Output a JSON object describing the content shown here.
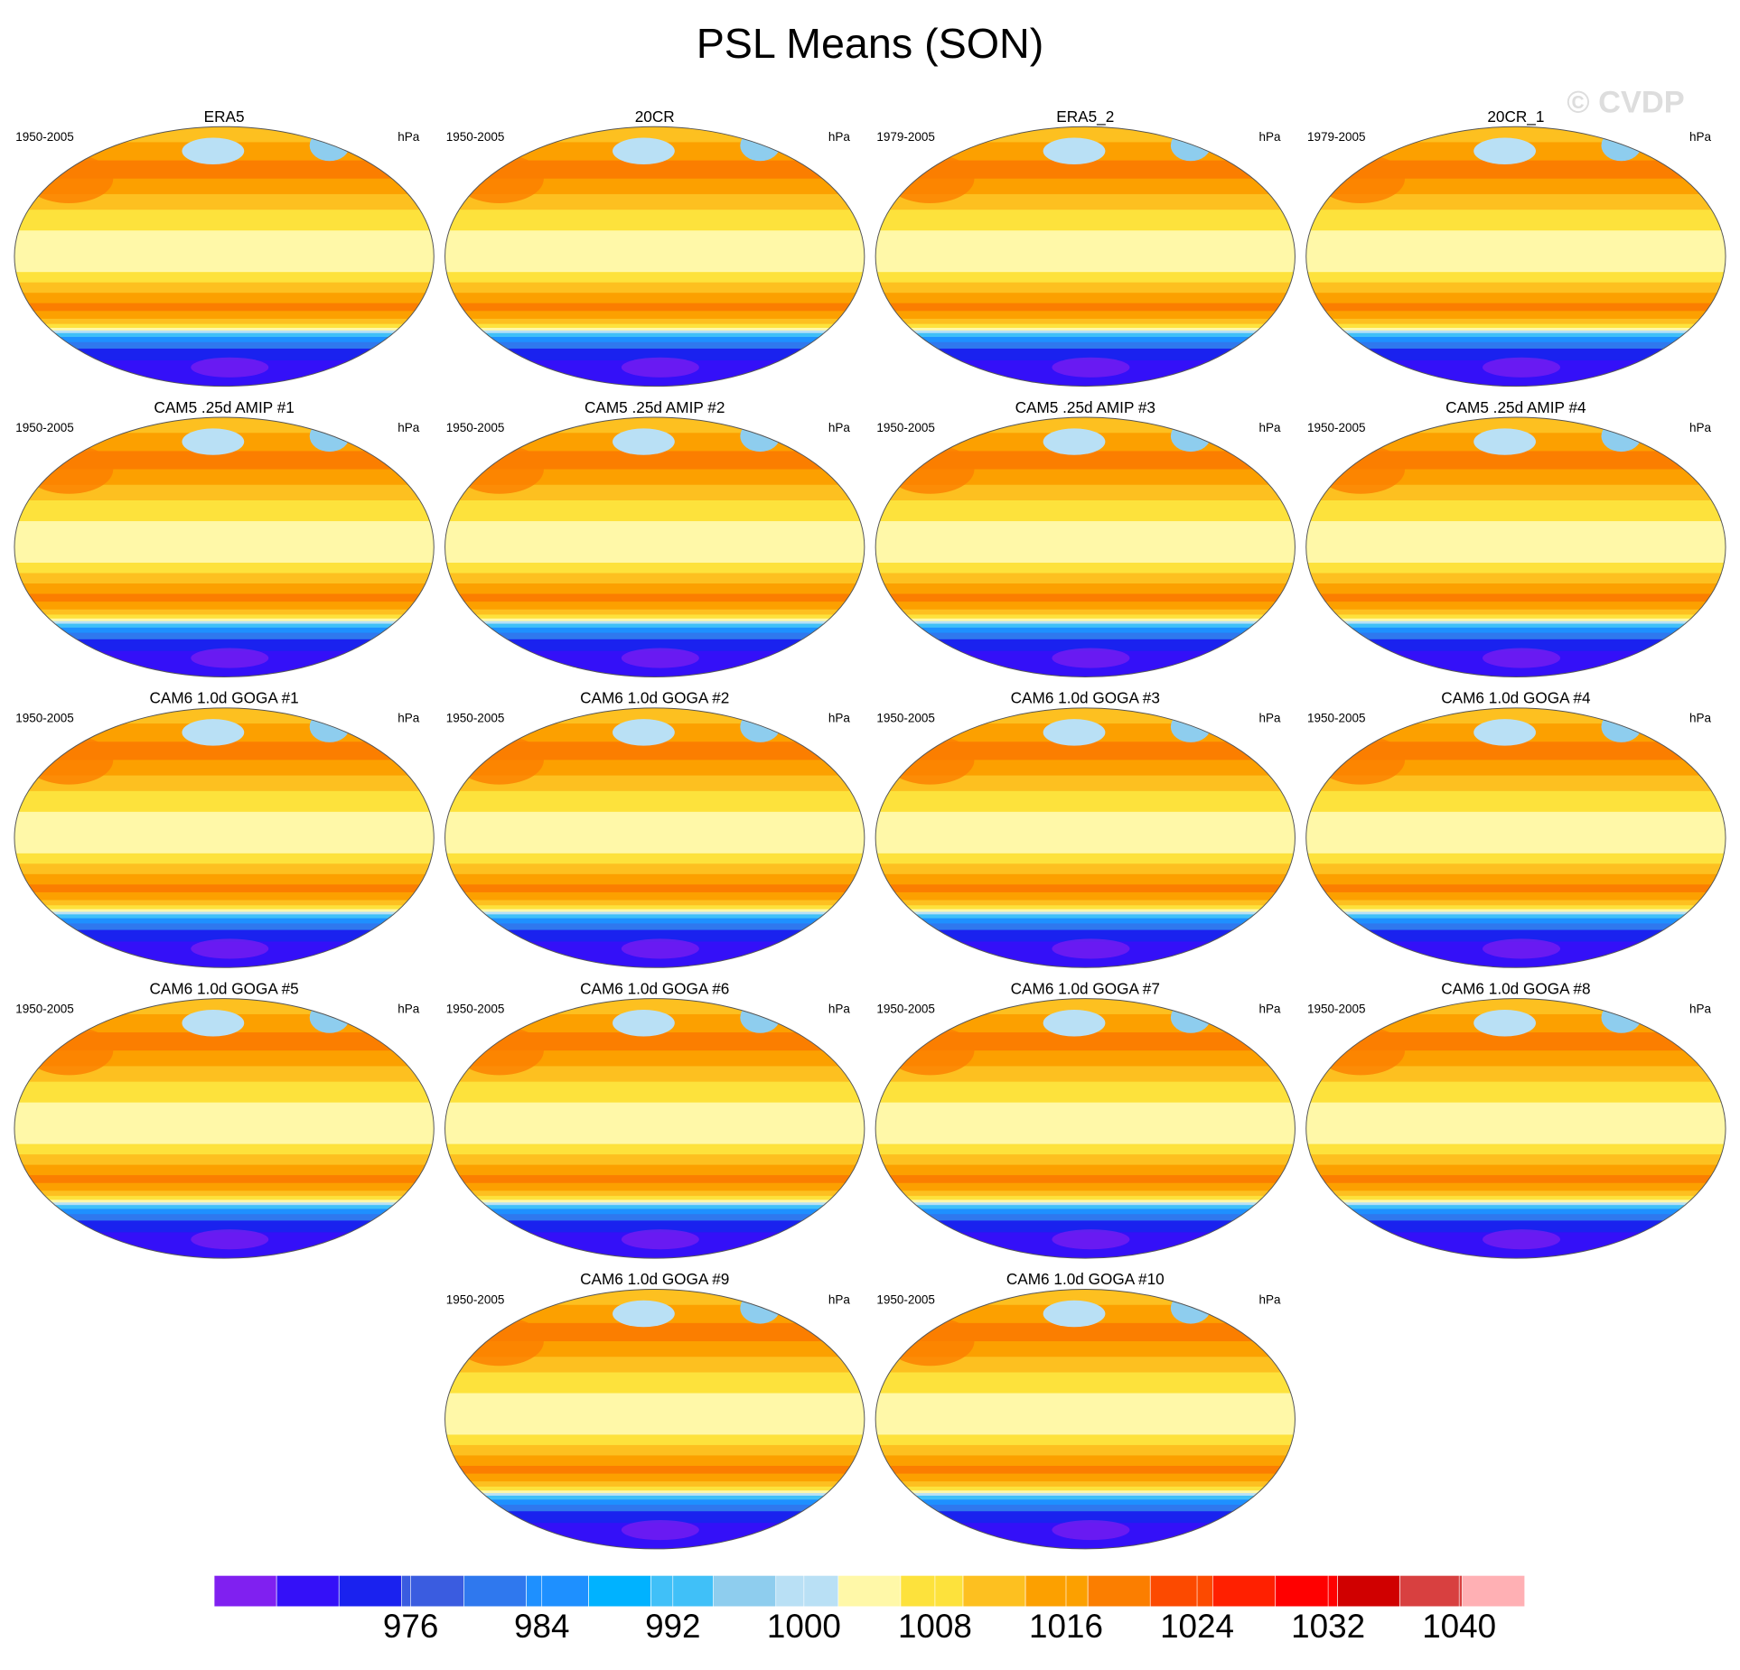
{
  "chart_data": {
    "type": "map-panels",
    "title": "PSL Means (SON)",
    "watermark": "© CVDP",
    "panels": [
      {
        "title": "ERA5",
        "period": "1950-2005",
        "units": "hPa"
      },
      {
        "title": "20CR",
        "period": "1950-2005",
        "units": "hPa"
      },
      {
        "title": "ERA5_2",
        "period": "1979-2005",
        "units": "hPa"
      },
      {
        "title": "20CR_1",
        "period": "1979-2005",
        "units": "hPa"
      },
      {
        "title": "CAM5 .25d AMIP #1",
        "period": "1950-2005",
        "units": "hPa"
      },
      {
        "title": "CAM5 .25d AMIP #2",
        "period": "1950-2005",
        "units": "hPa"
      },
      {
        "title": "CAM5 .25d AMIP #3",
        "period": "1950-2005",
        "units": "hPa"
      },
      {
        "title": "CAM5 .25d AMIP #4",
        "period": "1950-2005",
        "units": "hPa"
      },
      {
        "title": "CAM6 1.0d GOGA #1",
        "period": "1950-2005",
        "units": "hPa"
      },
      {
        "title": "CAM6 1.0d GOGA #2",
        "period": "1950-2005",
        "units": "hPa"
      },
      {
        "title": "CAM6 1.0d GOGA #3",
        "period": "1950-2005",
        "units": "hPa"
      },
      {
        "title": "CAM6 1.0d GOGA #4",
        "period": "1950-2005",
        "units": "hPa"
      },
      {
        "title": "CAM6 1.0d GOGA #5",
        "period": "1950-2005",
        "units": "hPa"
      },
      {
        "title": "CAM6 1.0d GOGA #6",
        "period": "1950-2005",
        "units": "hPa"
      },
      {
        "title": "CAM6 1.0d GOGA #7",
        "period": "1950-2005",
        "units": "hPa"
      },
      {
        "title": "CAM6 1.0d GOGA #8",
        "period": "1950-2005",
        "units": "hPa"
      },
      {
        "title": "CAM6 1.0d GOGA #9",
        "period": "1950-2005",
        "units": "hPa"
      },
      {
        "title": "CAM6 1.0d GOGA #10",
        "period": "1950-2005",
        "units": "hPa"
      }
    ],
    "colorbar": {
      "lim": [
        964,
        1044
      ],
      "ticks": [
        976,
        984,
        992,
        1000,
        1008,
        1016,
        1024,
        1032,
        1040
      ],
      "colors": [
        "#8020f0",
        "#3410f8",
        "#1a22ef",
        "#3a5ce0",
        "#2f78ee",
        "#1e90ff",
        "#00b2ff",
        "#40c0f8",
        "#8ecdee",
        "#b9e0f5",
        "#fff8a8",
        "#fde23c",
        "#fdc020",
        "#fca000",
        "#fb7e00",
        "#fc4a00",
        "#ff2000",
        "#ff0000",
        "#d00000",
        "#d84040",
        "#ffb0b4"
      ]
    }
  }
}
